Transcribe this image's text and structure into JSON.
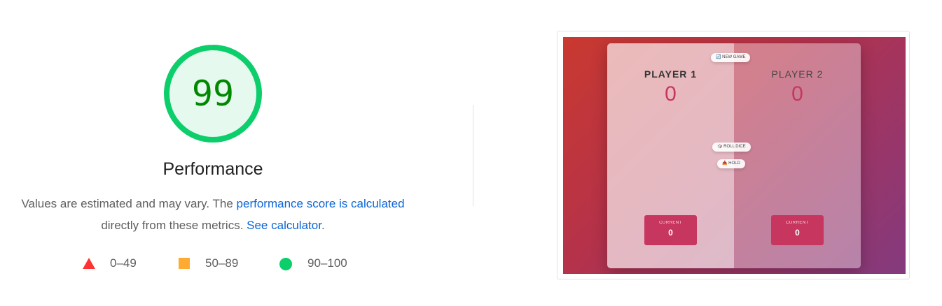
{
  "gauge": {
    "score": "99",
    "label": "Performance",
    "fraction": 0.99,
    "color": "#0cce6b",
    "fill": "#e5f9ee",
    "text_color": "#008800"
  },
  "description": {
    "part1": "Values are estimated and may vary. The ",
    "link1": "performance score is calculated",
    "part2": " directly from these metrics. ",
    "link2": "See calculator",
    "part3": "."
  },
  "legend": [
    {
      "shape": "triangle-icon",
      "range": "0–49",
      "color": "#ff3333"
    },
    {
      "shape": "square-icon",
      "range": "50–89",
      "color": "#ffaa33"
    },
    {
      "shape": "circle-icon",
      "range": "90–100",
      "color": "#0cce6b"
    }
  ],
  "screenshot": {
    "new_game": "🔄 NEW GAME",
    "roll_dice": "🎲 ROLL DICE",
    "hold": "📥 HOLD",
    "player1": {
      "name": "PLAYER 1",
      "score": "0",
      "current_label": "CURRENT",
      "current": "0"
    },
    "player2": {
      "name": "PLAYER 2",
      "score": "0",
      "current_label": "CURRENT",
      "current": "0"
    }
  }
}
